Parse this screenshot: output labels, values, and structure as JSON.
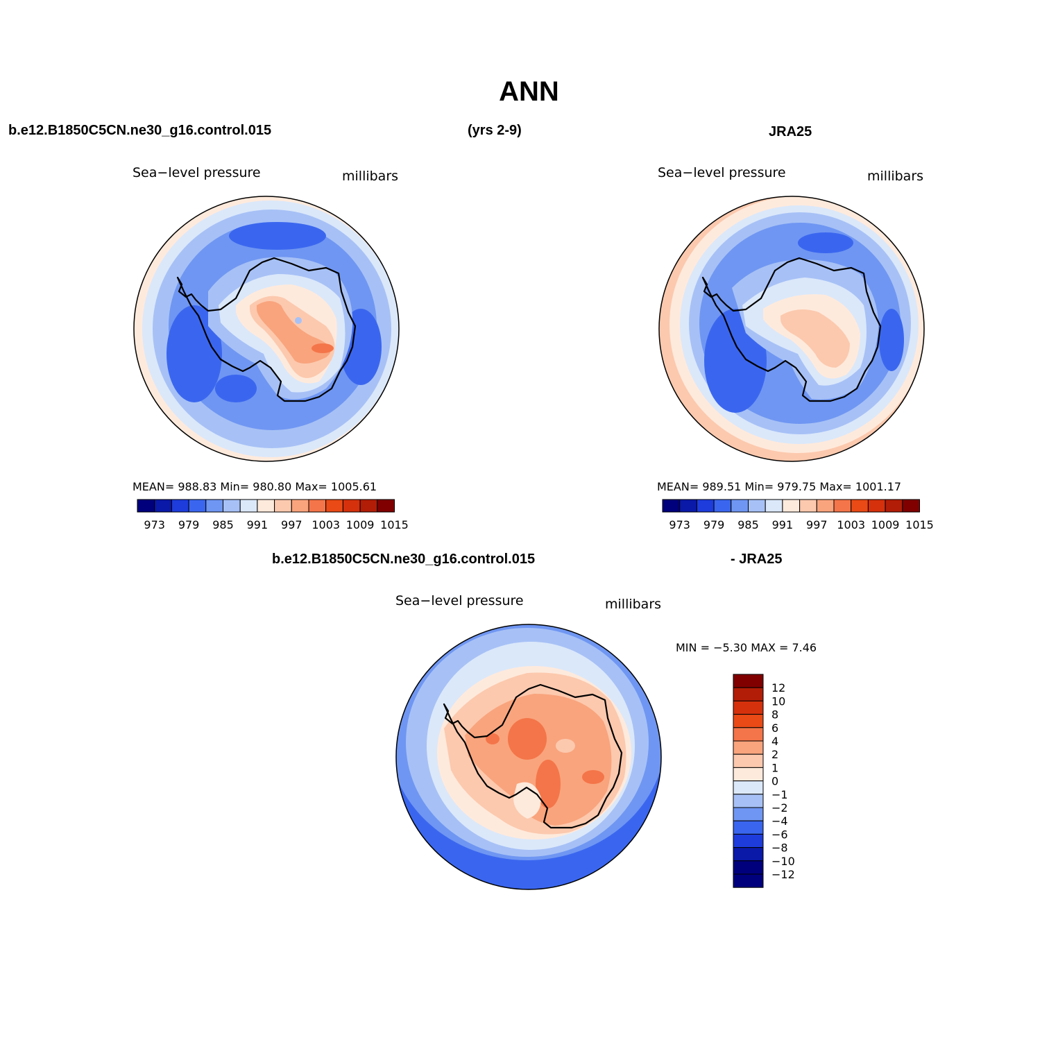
{
  "title": "ANN",
  "header": {
    "case_name": "b.e12.B1850C5CN.ne30_g16.control.015",
    "years": "(yrs 2-9)",
    "obs_name": "JRA25",
    "diff_left": "b.e12.B1850C5CN.ne30_g16.control.015",
    "diff_right": "- JRA25"
  },
  "panels": {
    "model": {
      "variable": "Sea−level pressure",
      "units": "millibars",
      "stats": "MEAN=  988.83    Min=  980.80    Max=  1005.61",
      "colorbar_ticks": [
        "973",
        "979",
        "985",
        "991",
        "997",
        "1003",
        "1009",
        "1015"
      ]
    },
    "obs": {
      "variable": "Sea−level pressure",
      "units": "millibars",
      "stats": "MEAN=  989.51    Min=  979.75    Max=  1001.17",
      "colorbar_ticks": [
        "973",
        "979",
        "985",
        "991",
        "997",
        "1003",
        "1009",
        "1015"
      ]
    },
    "diff": {
      "variable": "Sea−level pressure",
      "units": "millibars",
      "stats": "MIN =   −5.30  MAX =     7.46",
      "colorbar_ticks": [
        "12",
        "10",
        "8",
        "6",
        "4",
        "2",
        "1",
        "0",
        "−1",
        "−2",
        "−4",
        "−6",
        "−8",
        "−10",
        "−12"
      ]
    }
  },
  "colors": {
    "abs_scale": [
      "#00007d",
      "#0a19a8",
      "#1e3cdc",
      "#3a66ef",
      "#6f96f2",
      "#a7c1f6",
      "#dbe8fa",
      "#feeadc",
      "#fcc9ae",
      "#f9a47d",
      "#f47549",
      "#ea4a16",
      "#d5310c",
      "#b21d07",
      "#800000"
    ],
    "diff_scale_top_down": [
      "#800000",
      "#b21d07",
      "#d5310c",
      "#ea4a16",
      "#f47549",
      "#f9a47d",
      "#fcc9ae",
      "#feeadc",
      "#dbe8fa",
      "#a7c1f6",
      "#6f96f2",
      "#3a66ef",
      "#1e3cdc",
      "#0a19a8",
      "#00007d",
      "#00007d"
    ]
  }
}
